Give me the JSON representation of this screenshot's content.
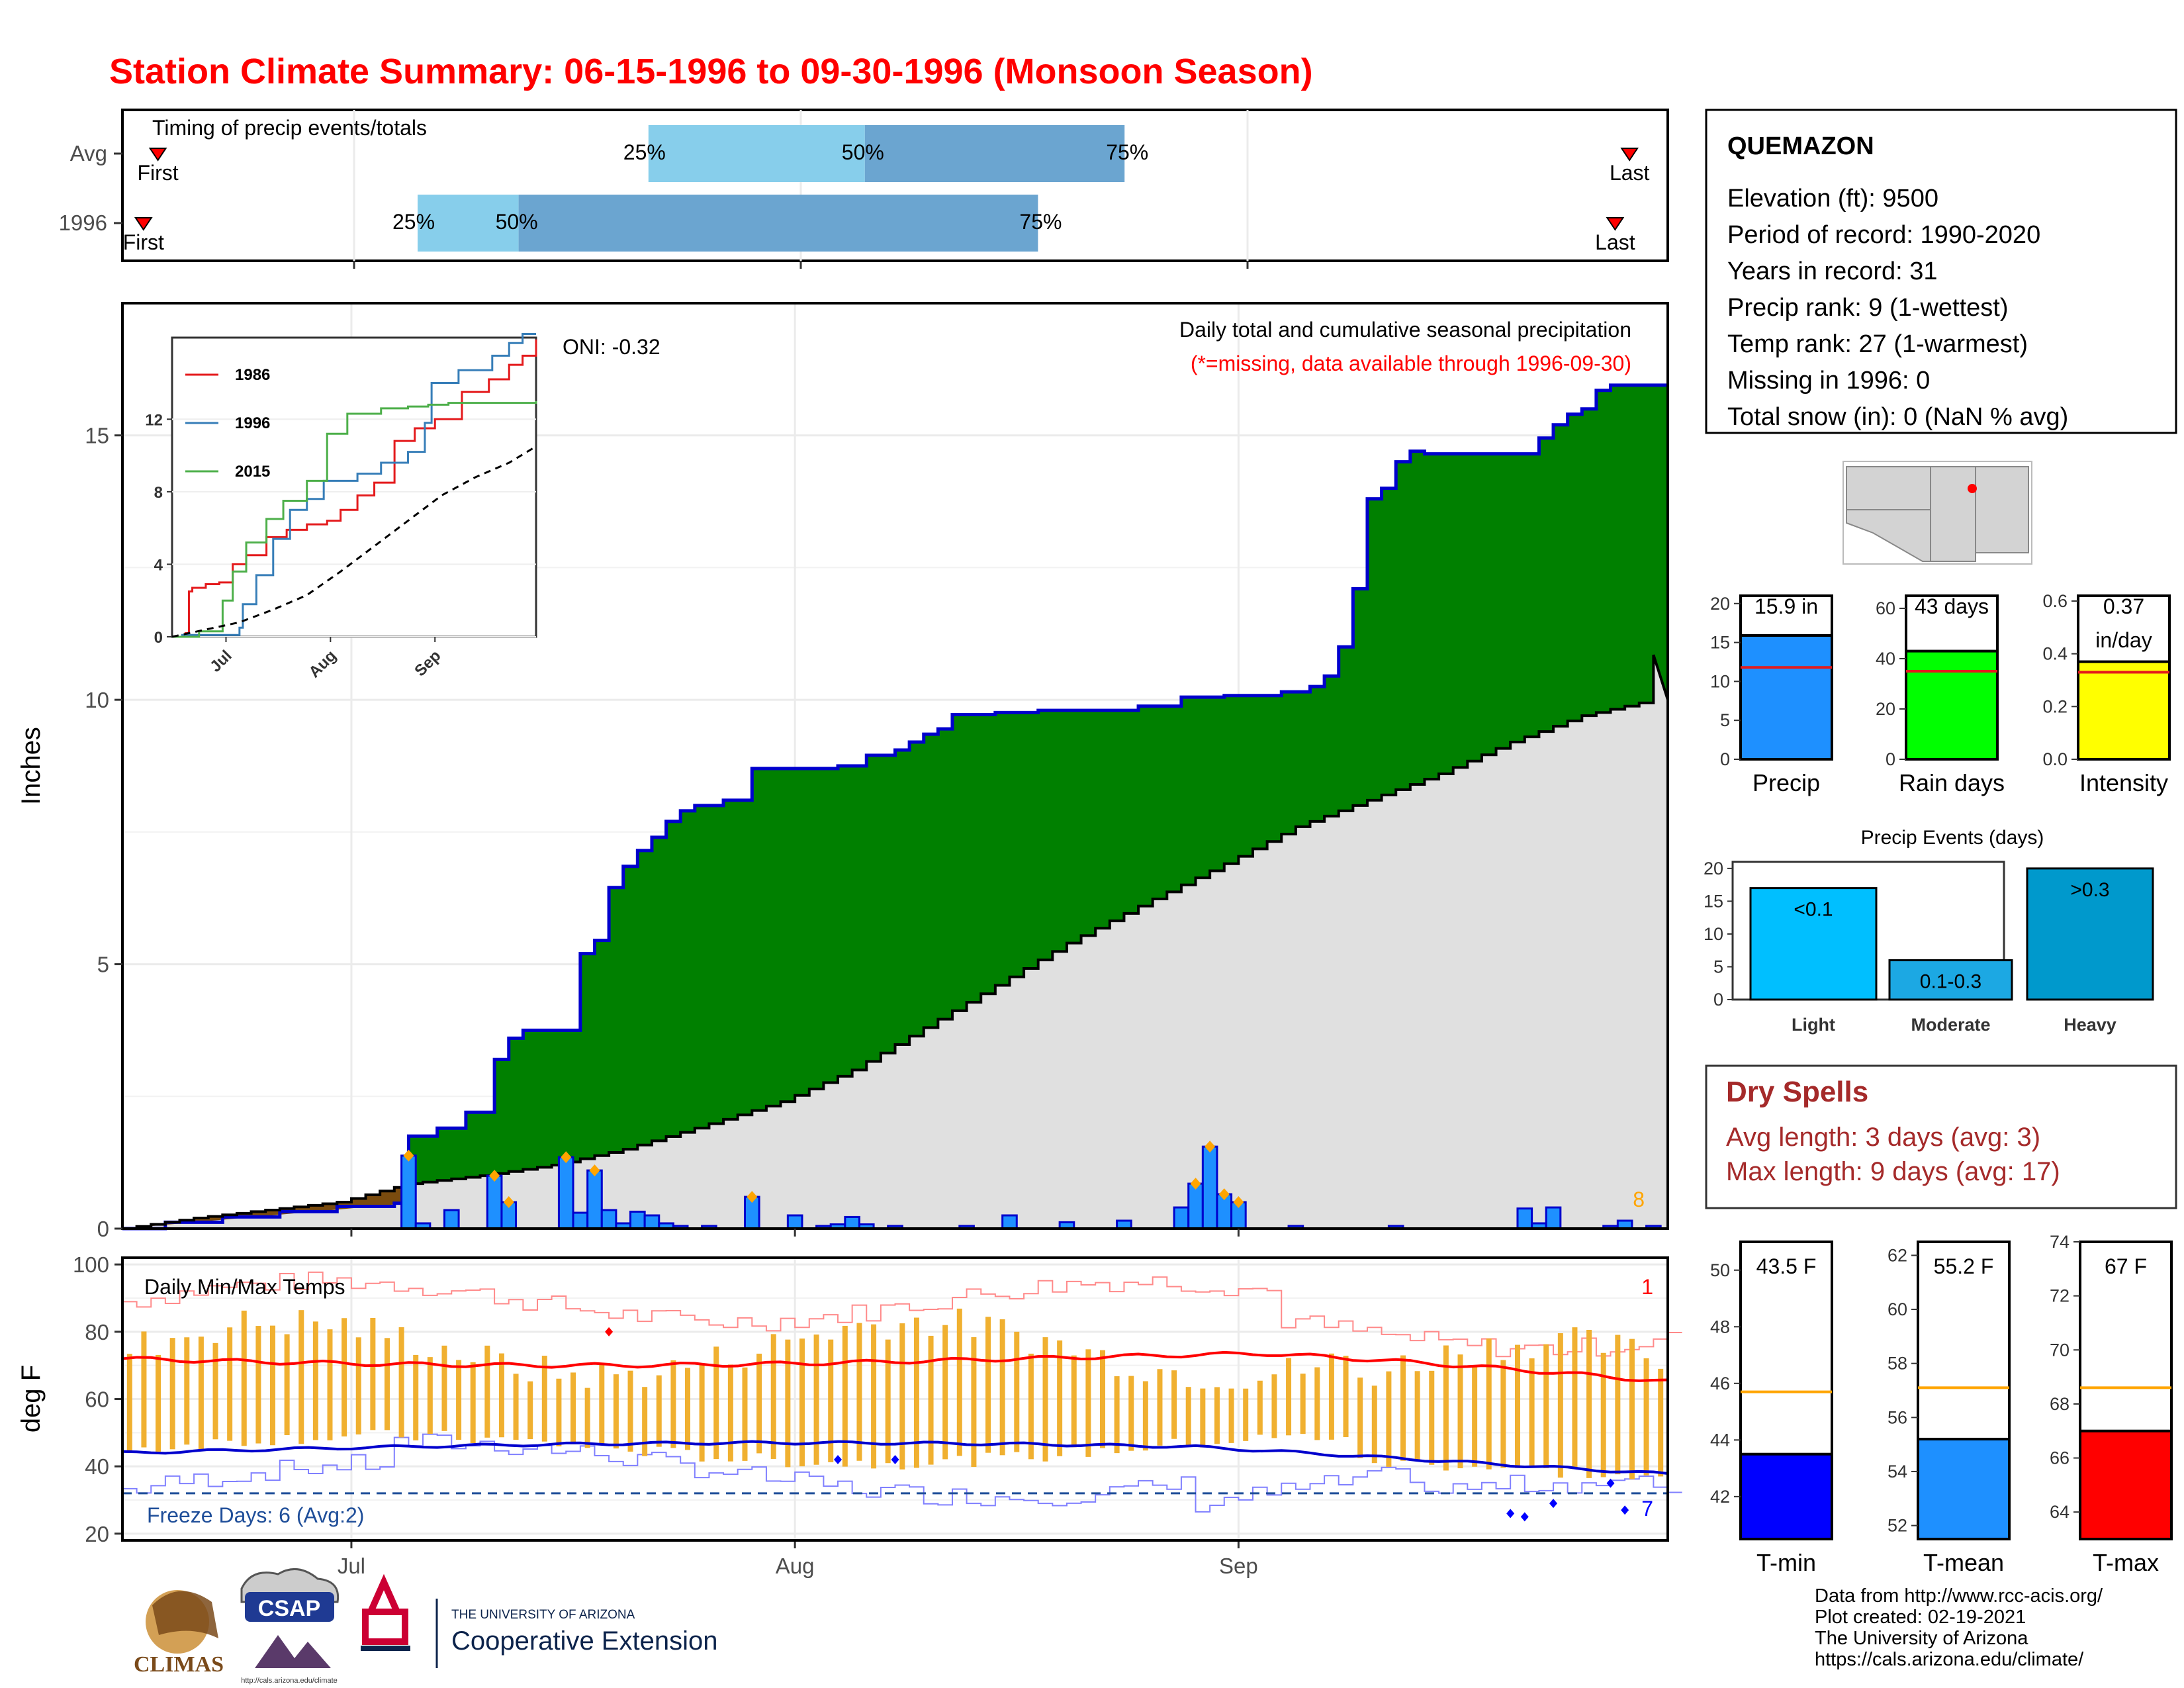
{
  "page": {
    "title": "Station Climate Summary: 06-15-1996 to 09-30-1996 (Monsoon Season)",
    "footer": [
      "Data from http://www.rcc-acis.org/",
      "Plot created: 02-19-2021",
      "The University of Arizona",
      "https://cals.arizona.edu/climate/"
    ],
    "logos": {
      "climas": "CLIMAS",
      "csap": "CSAP",
      "csap_url": "http://cals.arizona.edu/climate",
      "ua_small": "THE UNIVERSITY OF ARIZONA",
      "ua_big": "Cooperative Extension"
    },
    "colors": {
      "title": "#ff0000",
      "green": "#008000",
      "blue_bar": "#1e90ff",
      "gray_fill": "#e0e0e0",
      "dry_spell": "#a52a2a"
    }
  },
  "timing": {
    "title": "Timing of precip events/totals",
    "rows": [
      {
        "label": "Avg",
        "first_label": "First",
        "last_label": "Last",
        "first": "06-17",
        "last": "09-27",
        "q25_label": "25%",
        "q50_label": "50%",
        "q75_label": "75%",
        "q25": "07-21",
        "q50": "08-05",
        "q75": "08-23"
      },
      {
        "label": "1996",
        "first_label": "First",
        "last_label": "Last",
        "first": "06-16",
        "last": "09-26",
        "q25_label": "25%",
        "q50_label": "50%",
        "q75_label": "75%",
        "q25": "07-05",
        "q50": "07-12",
        "q75": "08-17"
      }
    ]
  },
  "station": {
    "name": "QUEMAZON",
    "lines": [
      "Elevation (ft): 9500",
      "Period of record: 1990-2020",
      "Years in record: 31",
      "Precip rank: 9 (1-wettest)",
      "Temp rank: 27 (1-warmest)",
      "Missing in 1996: 0",
      "Total snow (in): 0 (NaN % avg)"
    ]
  },
  "main_chart": {
    "ylabel": "Inches",
    "yticks": [
      "0",
      "5",
      "10",
      "15"
    ],
    "xticks": [
      "Jul",
      "Aug",
      "Sep"
    ],
    "title": "Daily total and cumulative seasonal precipitation",
    "subtitle": "(*=missing, data available through 1996-09-30)",
    "oni": "ONI: -0.32",
    "corner_count": "8"
  },
  "inset": {
    "yticks": [
      "0",
      "4",
      "8",
      "12"
    ],
    "xticks": [
      "Jul",
      "Aug",
      "Sep"
    ],
    "legend": [
      {
        "name": "1986",
        "color": "#e41a1c"
      },
      {
        "name": "1996",
        "color": "#377eb8"
      },
      {
        "name": "2015",
        "color": "#4daf4a"
      }
    ]
  },
  "summary_bars": [
    {
      "label": "Precip",
      "value_label": "15.9 in",
      "yticks": [
        "0",
        "5",
        "10",
        "15",
        "20"
      ],
      "color": "#1e90ff"
    },
    {
      "label": "Rain days",
      "value_label": "43 days",
      "yticks": [
        "0",
        "20",
        "40",
        "60"
      ],
      "color": "#00ff00"
    },
    {
      "label": "Intensity",
      "value_label": "0.37",
      "value_label2": "in/day",
      "yticks": [
        "0.0",
        "0.2",
        "0.4",
        "0.6"
      ],
      "color": "#ffff00"
    }
  ],
  "events": {
    "title": "Precip Events (days)",
    "yticks": [
      "0",
      "5",
      "10",
      "15",
      "20"
    ],
    "bars": [
      {
        "category": "Light",
        "label": "<0.1",
        "color": "#00bfff"
      },
      {
        "category": "Moderate",
        "label": "0.1-0.3",
        "color": "#1ca8e3"
      },
      {
        "category": "Heavy",
        "label": ">0.3",
        "color": "#0099cc"
      }
    ]
  },
  "dry_spells": {
    "title": "Dry Spells",
    "lines": [
      "Avg length: 3 days (avg: 3)",
      "Max length: 9 days (avg: 17)"
    ]
  },
  "temp_chart": {
    "ylabel": "deg F",
    "yticks": [
      "20",
      "40",
      "60",
      "80",
      "100"
    ],
    "xticks": [
      "Jul",
      "Aug",
      "Sep"
    ],
    "title": "Daily Min/Max Temps",
    "freeze": "Freeze Days: 6 (Avg:2)",
    "hot_count": "1",
    "cold_count": "7"
  },
  "temp_bars": [
    {
      "label": "T-min",
      "value_label": "43.5 F",
      "yticks": [
        "42",
        "44",
        "46",
        "48",
        "50"
      ],
      "color": "#0000ff"
    },
    {
      "label": "T-mean",
      "value_label": "55.2 F",
      "yticks": [
        "52",
        "54",
        "56",
        "58",
        "60",
        "62"
      ],
      "color": "#1e90ff"
    },
    {
      "label": "T-max",
      "value_label": "67 F",
      "yticks": [
        "64",
        "66",
        "68",
        "70",
        "72",
        "74"
      ],
      "color": "#ff0000"
    }
  ],
  "chart_data": [
    {
      "type": "area",
      "title": "Daily total and cumulative seasonal precipitation",
      "xlabel": "",
      "ylabel": "Inches",
      "x_range": [
        "1996-06-15",
        "1996-09-30"
      ],
      "ylim": [
        0,
        17.5
      ],
      "cumulative_1996_steps": [
        [
          "06-15",
          0.0
        ],
        [
          "06-18",
          0.12
        ],
        [
          "06-22",
          0.22
        ],
        [
          "06-26",
          0.32
        ],
        [
          "06-30",
          0.42
        ],
        [
          "07-04",
          0.48
        ],
        [
          "07-05",
          1.75
        ],
        [
          "07-07",
          1.9
        ],
        [
          "07-09",
          2.2
        ],
        [
          "07-11",
          3.2
        ],
        [
          "07-12",
          3.6
        ],
        [
          "07-13",
          3.75
        ],
        [
          "07-17",
          5.2
        ],
        [
          "07-18",
          5.45
        ],
        [
          "07-19",
          6.45
        ],
        [
          "07-20",
          6.85
        ],
        [
          "07-21",
          7.15
        ],
        [
          "07-22",
          7.4
        ],
        [
          "07-23",
          7.7
        ],
        [
          "07-24",
          7.9
        ],
        [
          "07-25",
          8.0
        ],
        [
          "07-27",
          8.1
        ],
        [
          "07-29",
          8.7
        ],
        [
          "08-04",
          8.75
        ],
        [
          "08-06",
          8.95
        ],
        [
          "08-08",
          9.05
        ],
        [
          "08-09",
          9.2
        ],
        [
          "08-10",
          9.35
        ],
        [
          "08-11",
          9.45
        ],
        [
          "08-12",
          9.72
        ],
        [
          "08-15",
          9.76
        ],
        [
          "08-18",
          9.8
        ],
        [
          "08-25",
          9.88
        ],
        [
          "08-28",
          10.05
        ],
        [
          "08-31",
          10.08
        ],
        [
          "09-04",
          10.15
        ],
        [
          "09-06",
          10.25
        ],
        [
          "09-07",
          10.45
        ],
        [
          "09-08",
          11.0
        ],
        [
          "09-09",
          12.1
        ],
        [
          "09-10",
          13.8
        ],
        [
          "09-11",
          14.0
        ],
        [
          "09-12",
          14.5
        ],
        [
          "09-13",
          14.7
        ],
        [
          "09-14",
          14.65
        ],
        [
          "09-22",
          14.95
        ],
        [
          "09-23",
          15.2
        ],
        [
          "09-24",
          15.4
        ],
        [
          "09-25",
          15.5
        ],
        [
          "09-26",
          15.85
        ],
        [
          "09-27",
          15.95
        ],
        [
          "09-28",
          15.95
        ],
        [
          "09-30",
          15.95
        ]
      ],
      "cumulative_average": [
        [
          "06-15",
          0.0
        ],
        [
          "06-20",
          0.2
        ],
        [
          "06-25",
          0.35
        ],
        [
          "06-30",
          0.5
        ],
        [
          "07-05",
          0.85
        ],
        [
          "07-10",
          1.0
        ],
        [
          "07-15",
          1.2
        ],
        [
          "07-20",
          1.5
        ],
        [
          "07-25",
          1.9
        ],
        [
          "07-31",
          2.4
        ],
        [
          "08-05",
          3.0
        ],
        [
          "08-10",
          3.8
        ],
        [
          "08-15",
          4.6
        ],
        [
          "08-20",
          5.4
        ],
        [
          "08-25",
          6.1
        ],
        [
          "08-31",
          6.9
        ],
        [
          "09-05",
          7.6
        ],
        [
          "09-10",
          8.1
        ],
        [
          "09-15",
          8.6
        ],
        [
          "09-20",
          9.2
        ],
        [
          "09-25",
          9.7
        ],
        [
          "09-30",
          10.0
        ],
        [
          "09-30",
          10.85
        ]
      ],
      "daily_precip": [
        [
          "07-05",
          1.38
        ],
        [
          "07-06",
          0.1
        ],
        [
          "07-08",
          0.35
        ],
        [
          "07-11",
          1.0
        ],
        [
          "07-12",
          0.5
        ],
        [
          "07-16",
          1.35
        ],
        [
          "07-17",
          0.3
        ],
        [
          "07-18",
          1.1
        ],
        [
          "07-19",
          0.35
        ],
        [
          "07-20",
          0.1
        ],
        [
          "07-21",
          0.32
        ],
        [
          "07-22",
          0.25
        ],
        [
          "07-23",
          0.1
        ],
        [
          "07-24",
          0.05
        ],
        [
          "07-26",
          0.05
        ],
        [
          "07-29",
          0.6
        ],
        [
          "08-01",
          0.25
        ],
        [
          "08-03",
          0.05
        ],
        [
          "08-04",
          0.08
        ],
        [
          "08-05",
          0.22
        ],
        [
          "08-06",
          0.08
        ],
        [
          "08-08",
          0.05
        ],
        [
          "08-13",
          0.05
        ],
        [
          "08-16",
          0.25
        ],
        [
          "08-20",
          0.12
        ],
        [
          "08-24",
          0.15
        ],
        [
          "08-28",
          0.4
        ],
        [
          "08-29",
          0.85
        ],
        [
          "08-30",
          1.55
        ],
        [
          "08-31",
          0.65
        ],
        [
          "09-01",
          0.5
        ],
        [
          "09-05",
          0.05
        ],
        [
          "09-12",
          0.05
        ],
        [
          "09-21",
          0.38
        ],
        [
          "09-22",
          0.1
        ],
        [
          "09-23",
          0.4
        ],
        [
          "09-27",
          0.05
        ],
        [
          "09-28",
          0.15
        ],
        [
          "09-30",
          0.05
        ]
      ]
    },
    {
      "type": "line",
      "title": "",
      "series": [
        {
          "name": "1986"
        },
        {
          "name": "1996"
        },
        {
          "name": "2015"
        },
        {
          "name": ""
        }
      ],
      "ylim": [
        0,
        16.5
      ]
    },
    {
      "type": "bar",
      "categories": [
        "Precip",
        "Rain days",
        "Intensity"
      ],
      "values": [
        15.9,
        43,
        0.37
      ],
      "averages": [
        11.8,
        35,
        0.33
      ],
      "ylims": [
        [
          0,
          21
        ],
        [
          0,
          65
        ],
        [
          0,
          0.62
        ]
      ]
    },
    {
      "type": "bar",
      "title": "Precip Events (days)",
      "categories": [
        "Light",
        "Moderate",
        "Heavy"
      ],
      "values": [
        17,
        6,
        20
      ],
      "ylim": [
        0,
        21
      ]
    },
    {
      "type": "bar",
      "title": "Daily Min/Max Temps",
      "ylabel": "deg F",
      "ylim": [
        18,
        102
      ],
      "freezing_line": 32
    },
    {
      "type": "bar",
      "categories": [
        "T-min",
        "T-mean",
        "T-max"
      ],
      "values": [
        43.5,
        55.2,
        67
      ],
      "averages": [
        45.7,
        57.1,
        68.6
      ],
      "ylims": [
        [
          40.5,
          51
        ],
        [
          51.5,
          62.5
        ],
        [
          63,
          74
        ]
      ]
    }
  ]
}
